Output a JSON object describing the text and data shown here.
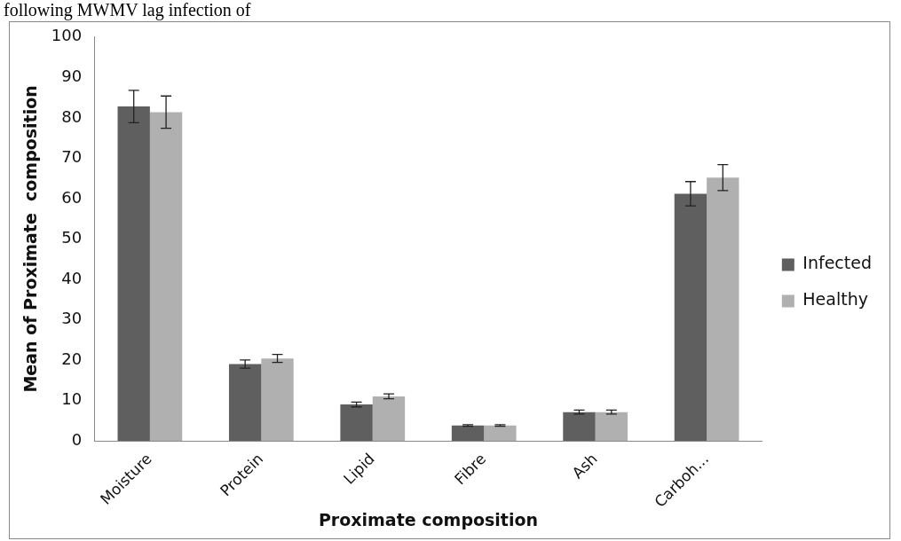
{
  "chart_data": {
    "type": "bar",
    "xlabel": "Proximate composition",
    "ylabel": "Mean of Proximate  composition",
    "annotations": [
      "following MWMV lag infection of"
    ],
    "categories": [
      "Moisture",
      "Protein",
      "Lipid",
      "Fibre",
      "Ash",
      "Carboh..."
    ],
    "series": [
      {
        "name": "Infected",
        "color": "#5f5f5f",
        "values": [
          82.8,
          19,
          9,
          3.8,
          7.1,
          61.2
        ],
        "errors": [
          4,
          1,
          0.6,
          0.2,
          0.5,
          3
        ]
      },
      {
        "name": "Healthy",
        "color": "#b0b0b0",
        "values": [
          81.4,
          20.4,
          11,
          3.8,
          7.1,
          65.2
        ],
        "errors": [
          4,
          1,
          0.6,
          0.2,
          0.5,
          3.2
        ]
      }
    ],
    "ylim": [
      0,
      100
    ],
    "yticks": [
      0,
      10,
      20,
      30,
      40,
      50,
      60,
      70,
      80,
      90,
      100
    ],
    "grid": false,
    "legend": "right"
  }
}
